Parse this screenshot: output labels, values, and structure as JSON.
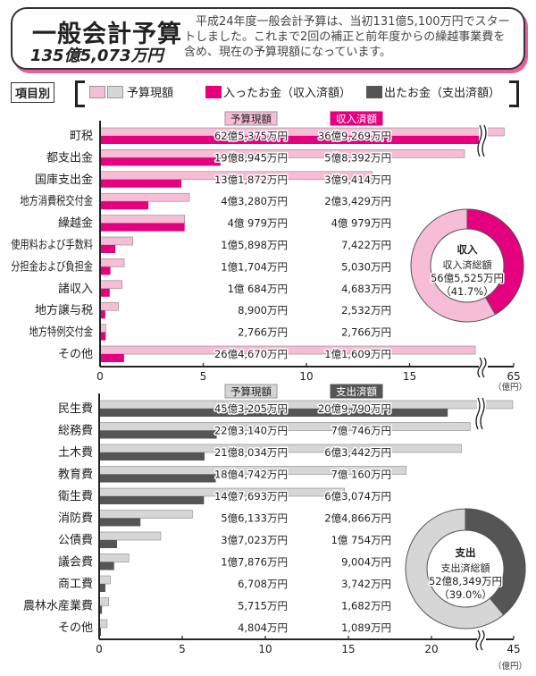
{
  "header": {
    "title": "一般会計予算",
    "total": "135億5,073万円",
    "description": "平成24年度一般会計予算は、当初131億5,100万円でスタートしました。これまで2回の補正と前年度からの繰越事業費を含め、現在の予算現額になっています。"
  },
  "legend": {
    "tag": "項目別",
    "budget": "予算現額",
    "income": "入ったお金（収入済額）",
    "expense": "出たお金（支出済額）"
  },
  "colors": {
    "budget_income": "#f7bcd6",
    "income": "#e4007f",
    "budget_expense": "#d6d6d6",
    "expense": "#555555",
    "header_shadow": "#e8609d"
  },
  "chart_data": [
    {
      "type": "bar",
      "orientation": "horizontal",
      "column_headers": [
        "予算現額",
        "収入済額"
      ],
      "categories": [
        "町税",
        "都支出金",
        "国庫支出金",
        "地方消費税交付金",
        "繰越金",
        "使用料および手数料",
        "分担金および負担金",
        "諸収入",
        "地方譲与税",
        "地方特例交付金",
        "その他"
      ],
      "series": [
        {
          "name": "予算現額",
          "values": [
            62.5375,
            19.8945,
            13.1872,
            4.328,
            4.0979,
            1.5898,
            1.1704,
            1.0684,
            0.89,
            0.2766,
            26.467
          ],
          "labels": [
            "62億5,375万円",
            "19億8,945万円",
            "13億1,872万円",
            "4億3,280万円",
            "4億 979万円",
            "1億5,898万円",
            "1億1,704万円",
            "1億 684万円",
            "8,900万円",
            "2,766万円",
            "26億4,670万円"
          ]
        },
        {
          "name": "収入済額",
          "values": [
            36.9269,
            5.8392,
            3.9414,
            2.3429,
            4.0979,
            0.7422,
            0.503,
            0.4683,
            0.2532,
            0.2766,
            1.1609
          ],
          "labels": [
            "36億9,269万円",
            "5億8,392万円",
            "3億9,414万円",
            "2億3,429万円",
            "4億 979万円",
            "7,422万円",
            "5,030万円",
            "4,683万円",
            "2,532万円",
            "2,766万円",
            "1億1,609万円"
          ]
        }
      ],
      "x_ticks": [
        "0",
        "5",
        "10",
        "15",
        "65"
      ],
      "xlim": [
        0,
        65
      ],
      "axis_break": true,
      "unit": "（億円）",
      "grid": false,
      "donut": {
        "label": "収入",
        "caption": "収入済総額",
        "total": "56億5,525万円",
        "percent_label": "（41.7%）",
        "percent": 41.7
      }
    },
    {
      "type": "bar",
      "orientation": "horizontal",
      "column_headers": [
        "予算現額",
        "支出済額"
      ],
      "categories": [
        "民生費",
        "総務費",
        "土木費",
        "教育費",
        "衛生費",
        "消防費",
        "公債費",
        "議会費",
        "商工費",
        "農林水産業費",
        "その他"
      ],
      "series": [
        {
          "name": "予算現額",
          "values": [
            45.3205,
            22.314,
            21.8034,
            18.4742,
            14.7693,
            5.6133,
            3.7023,
            1.7876,
            0.6708,
            0.5715,
            0.4804
          ],
          "labels": [
            "45億3,205万円",
            "22億3,140万円",
            "21億8,034万円",
            "18億4,742万円",
            "14億7,693万円",
            "5億6,133万円",
            "3億7,023万円",
            "1億7,876万円",
            "6,708万円",
            "5,715万円",
            "4,804万円"
          ]
        },
        {
          "name": "支出済額",
          "values": [
            20.979,
            7.0746,
            6.3442,
            7.016,
            6.3074,
            2.4866,
            1.0754,
            0.9004,
            0.3742,
            0.1682,
            0.1089
          ],
          "labels": [
            "20億9,790万円",
            "7億 746万円",
            "6億3,442万円",
            "7億 160万円",
            "6億3,074万円",
            "2億4,866万円",
            "1億 754万円",
            "9,004万円",
            "3,742万円",
            "1,682万円",
            "1,089万円"
          ]
        }
      ],
      "x_ticks": [
        "0",
        "5",
        "10",
        "15",
        "20",
        "45"
      ],
      "xlim": [
        0,
        45
      ],
      "axis_break": true,
      "unit": "（億円）",
      "grid": false,
      "donut": {
        "label": "支出",
        "caption": "支出済総額",
        "total": "52億8,349万円",
        "percent_label": "（39.0%）",
        "percent": 39.0
      }
    }
  ]
}
